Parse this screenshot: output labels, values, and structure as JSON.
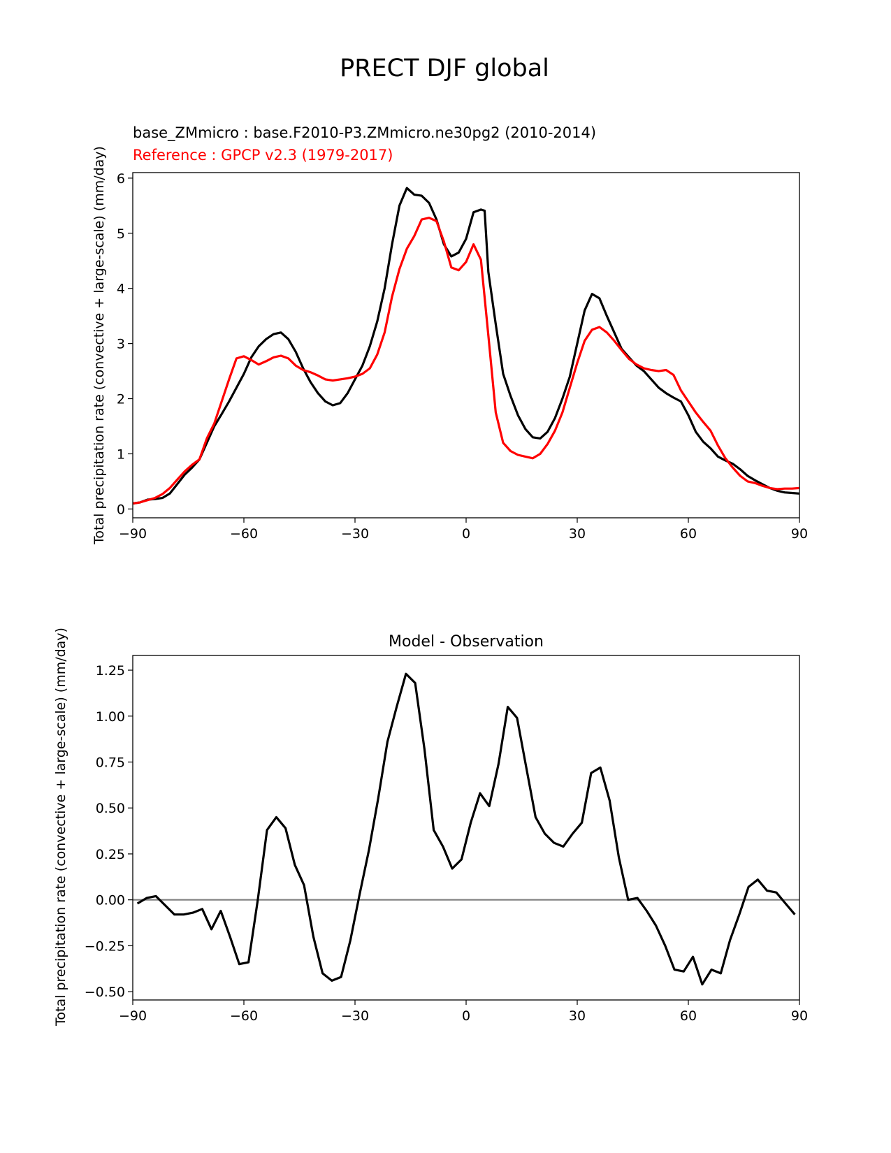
{
  "figure_title": "PRECT DJF global",
  "chart_data": [
    {
      "type": "line",
      "test_label": "base_ZMmicro : base.F2010-P3.ZMmicro.ne30pg2 (2010-2014)",
      "ref_label": "Reference : GPCP v2.3 (1979-2017)",
      "ylabel": "Total precipitation rate (convective + large-scale) (mm/day)",
      "xlabel": "",
      "xlim": [
        -90,
        90
      ],
      "ylim": [
        -0.16,
        6.1
      ],
      "xticks": [
        -90,
        -60,
        -30,
        0,
        30,
        60,
        90
      ],
      "xtick_labels": [
        "−90",
        "−60",
        "−30",
        "0",
        "30",
        "60",
        "90"
      ],
      "yticks": [
        0,
        1,
        2,
        3,
        4,
        5,
        6
      ],
      "ytick_labels": [
        "0",
        "1",
        "2",
        "3",
        "4",
        "5",
        "6"
      ],
      "grid": false,
      "series": [
        {
          "name": "base_ZMmicro : base.F2010-P3.ZMmicro.ne30pg2 (2010-2014)",
          "color": "#000000",
          "x": [
            -90,
            -88,
            -86,
            -84,
            -82,
            -80,
            -78,
            -76,
            -74,
            -72,
            -70,
            -68,
            -66,
            -64,
            -62,
            -60,
            -58,
            -56,
            -54,
            -52,
            -50,
            -48,
            -46,
            -44,
            -42,
            -40,
            -38,
            -36,
            -34,
            -32,
            -30,
            -28,
            -26,
            -24,
            -22,
            -20,
            -18,
            -16,
            -14,
            -12,
            -10,
            -8,
            -6,
            -4,
            -2,
            0,
            2,
            4,
            5,
            6,
            8,
            10,
            12,
            14,
            16,
            18,
            20,
            22,
            24,
            26,
            28,
            30,
            32,
            34,
            36,
            38,
            40,
            42,
            44,
            46,
            48,
            50,
            52,
            54,
            56,
            58,
            60,
            62,
            64,
            66,
            68,
            70,
            72,
            74,
            76,
            78,
            80,
            82,
            84,
            86,
            88,
            90
          ],
          "y": [
            0.1,
            0.12,
            0.17,
            0.18,
            0.2,
            0.28,
            0.45,
            0.62,
            0.75,
            0.9,
            1.2,
            1.5,
            1.72,
            1.95,
            2.2,
            2.45,
            2.75,
            2.95,
            3.08,
            3.17,
            3.2,
            3.08,
            2.85,
            2.55,
            2.3,
            2.1,
            1.95,
            1.88,
            1.92,
            2.1,
            2.35,
            2.6,
            2.95,
            3.4,
            4.0,
            4.8,
            5.5,
            5.82,
            5.7,
            5.68,
            5.55,
            5.25,
            4.8,
            4.58,
            4.65,
            4.9,
            5.38,
            5.43,
            5.41,
            4.3,
            3.35,
            2.45,
            2.05,
            1.7,
            1.45,
            1.3,
            1.28,
            1.4,
            1.65,
            2.0,
            2.4,
            3.0,
            3.6,
            3.9,
            3.82,
            3.5,
            3.2,
            2.9,
            2.75,
            2.6,
            2.5,
            2.35,
            2.2,
            2.1,
            2.02,
            1.95,
            1.7,
            1.4,
            1.22,
            1.1,
            0.95,
            0.88,
            0.82,
            0.72,
            0.6,
            0.52,
            0.45,
            0.38,
            0.33,
            0.3,
            0.29,
            0.28
          ]
        },
        {
          "name": "Reference : GPCP v2.3 (1979-2017)",
          "color": "#ff0000",
          "x": [
            -90,
            -88,
            -86,
            -84,
            -82,
            -80,
            -78,
            -76,
            -74,
            -72,
            -70,
            -68,
            -66,
            -64,
            -62,
            -60,
            -58,
            -56,
            -54,
            -52,
            -50,
            -48,
            -46,
            -44,
            -42,
            -40,
            -38,
            -36,
            -34,
            -32,
            -30,
            -28,
            -26,
            -24,
            -22,
            -20,
            -18,
            -16,
            -14,
            -12,
            -10,
            -8,
            -6,
            -4,
            -2,
            0,
            2,
            4,
            6,
            8,
            10,
            12,
            14,
            16,
            18,
            20,
            22,
            24,
            26,
            28,
            30,
            32,
            34,
            36,
            38,
            40,
            42,
            44,
            46,
            48,
            50,
            52,
            54,
            56,
            58,
            60,
            62,
            64,
            66,
            68,
            70,
            72,
            74,
            76,
            78,
            80,
            82,
            84,
            86,
            88,
            90
          ],
          "y": [
            0.1,
            0.12,
            0.16,
            0.2,
            0.27,
            0.38,
            0.53,
            0.68,
            0.8,
            0.9,
            1.28,
            1.55,
            1.95,
            2.35,
            2.73,
            2.77,
            2.7,
            2.62,
            2.68,
            2.75,
            2.78,
            2.73,
            2.6,
            2.52,
            2.48,
            2.42,
            2.35,
            2.33,
            2.35,
            2.37,
            2.4,
            2.45,
            2.55,
            2.8,
            3.2,
            3.85,
            4.35,
            4.72,
            4.95,
            5.25,
            5.28,
            5.22,
            4.85,
            4.38,
            4.33,
            4.48,
            4.8,
            4.52,
            3.15,
            1.75,
            1.2,
            1.05,
            0.98,
            0.95,
            0.92,
            1.0,
            1.18,
            1.42,
            1.75,
            2.2,
            2.65,
            3.05,
            3.25,
            3.3,
            3.2,
            3.05,
            2.88,
            2.72,
            2.62,
            2.55,
            2.52,
            2.5,
            2.52,
            2.43,
            2.15,
            1.95,
            1.75,
            1.58,
            1.42,
            1.15,
            0.92,
            0.75,
            0.6,
            0.5,
            0.47,
            0.42,
            0.38,
            0.36,
            0.37,
            0.37,
            0.38
          ]
        }
      ]
    },
    {
      "type": "line",
      "title": "Model - Observation",
      "ylabel": "Total precipitation rate (convective + large-scale) (mm/day)",
      "xlabel": "",
      "xlim": [
        -90,
        90
      ],
      "ylim": [
        -0.545,
        1.33
      ],
      "xticks": [
        -90,
        -60,
        -30,
        0,
        30,
        60,
        90
      ],
      "xtick_labels": [
        "−90",
        "−60",
        "−30",
        "0",
        "30",
        "60",
        "90"
      ],
      "yticks": [
        -0.5,
        -0.25,
        0.0,
        0.25,
        0.5,
        0.75,
        1.0,
        1.25
      ],
      "ytick_labels": [
        "−0.50",
        "−0.25",
        "0.00",
        "0.25",
        "0.50",
        "0.75",
        "1.00",
        "1.25"
      ],
      "grid": false,
      "zero_line_color": "#808080",
      "series": [
        {
          "name": "",
          "color": "#000000",
          "x": [
            -88.75,
            -86.25,
            -83.75,
            -81.25,
            -78.75,
            -76.25,
            -73.75,
            -71.25,
            -68.75,
            -66.25,
            -63.75,
            -61.25,
            -58.75,
            -56.25,
            -53.75,
            -51.25,
            -48.75,
            -46.25,
            -43.75,
            -41.25,
            -38.75,
            -36.25,
            -33.75,
            -31.25,
            -28.75,
            -26.25,
            -23.75,
            -21.25,
            -18.75,
            -16.25,
            -13.75,
            -11.25,
            -8.75,
            -6.25,
            -3.75,
            -1.25,
            1.25,
            3.75,
            6.25,
            8.75,
            11.25,
            13.75,
            16.25,
            18.75,
            21.25,
            23.75,
            26.25,
            28.75,
            31.25,
            33.75,
            36.25,
            38.75,
            41.25,
            43.75,
            46.25,
            48.75,
            51.25,
            53.75,
            56.25,
            58.75,
            61.25,
            63.75,
            66.25,
            68.75,
            71.25,
            73.75,
            76.25,
            78.75,
            81.25,
            83.75,
            86.25,
            88.75
          ],
          "y": [
            -0.02,
            0.01,
            0.02,
            -0.03,
            -0.08,
            -0.08,
            -0.07,
            -0.05,
            -0.16,
            -0.06,
            -0.2,
            -0.35,
            -0.34,
            0.0,
            0.38,
            0.45,
            0.39,
            0.19,
            0.08,
            -0.2,
            -0.4,
            -0.44,
            -0.42,
            -0.22,
            0.03,
            0.27,
            0.55,
            0.86,
            1.05,
            1.23,
            1.18,
            0.82,
            0.38,
            0.29,
            0.17,
            0.22,
            0.42,
            0.58,
            0.51,
            0.74,
            1.05,
            0.99,
            0.72,
            0.45,
            0.36,
            0.31,
            0.29,
            0.36,
            0.42,
            0.69,
            0.72,
            0.54,
            0.23,
            0.0,
            0.01,
            -0.06,
            -0.14,
            -0.25,
            -0.38,
            -0.39,
            -0.31,
            -0.46,
            -0.38,
            -0.4,
            -0.22,
            -0.08,
            0.07,
            0.11,
            0.05,
            0.04,
            -0.02,
            -0.08
          ]
        }
      ]
    }
  ]
}
